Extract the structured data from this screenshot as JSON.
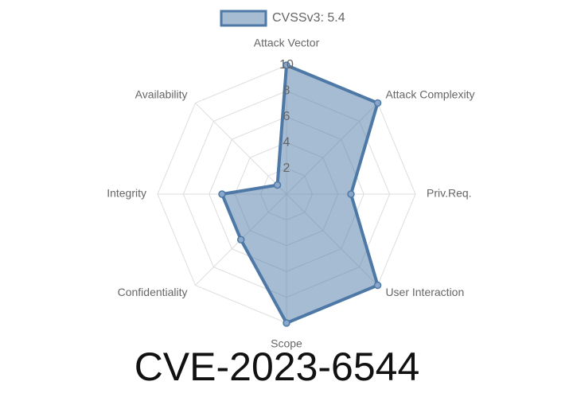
{
  "chart_data": {
    "type": "radar",
    "title": "CVE-2023-6544",
    "categories": [
      "Attack Vector",
      "Attack Complexity",
      "Priv.Req.",
      "User Interaction",
      "Scope",
      "Confidentiality",
      "Integrity",
      "Availability"
    ],
    "series": [
      {
        "name": "CVSSv3: 5.4",
        "color": "#4e79a7",
        "values": [
          10,
          10,
          5,
          10,
          10,
          5,
          5,
          1
        ]
      }
    ],
    "rlim": [
      0,
      10
    ],
    "rticks": [
      2,
      4,
      6,
      8,
      10
    ],
    "grid": true,
    "legend": "top"
  }
}
